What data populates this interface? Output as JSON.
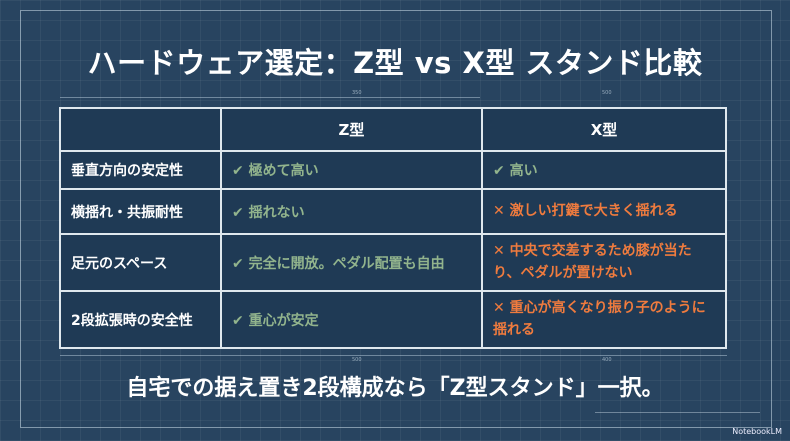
{
  "title": "ハードウェア選定：Z型 vs X型 スタンド比較",
  "dimensions": {
    "top": [
      "350",
      "500"
    ],
    "bottom": [
      "500",
      "400"
    ]
  },
  "table": {
    "headers": [
      "",
      "Z型",
      "X型"
    ],
    "rows": [
      {
        "label": "垂直方向の安定性",
        "z": "極めて高い",
        "x": "高い",
        "x_status": "good"
      },
      {
        "label": "横揺れ・共振耐性",
        "z": "揺れない",
        "x": "激しい打鍵で大きく揺れる",
        "x_status": "bad"
      },
      {
        "label": "足元のスペース",
        "z": "完全に開放。ペダル配置も自由",
        "x": "中央で交差するため膝が当たり、ペダルが置けない",
        "x_status": "bad"
      },
      {
        "label": "2段拡張時の安全性",
        "z": "重心が安定",
        "x": "重心が高くなり振り子のように揺れる",
        "x_status": "bad"
      }
    ]
  },
  "icons": {
    "good": "✔",
    "bad": "✕"
  },
  "colors": {
    "good": "#92b48d",
    "bad": "#ef7b3e",
    "background": "#284460"
  },
  "conclusion": "自宅での据え置き2段構成なら「Z型スタンド」一択。",
  "watermark": "NotebookLM"
}
